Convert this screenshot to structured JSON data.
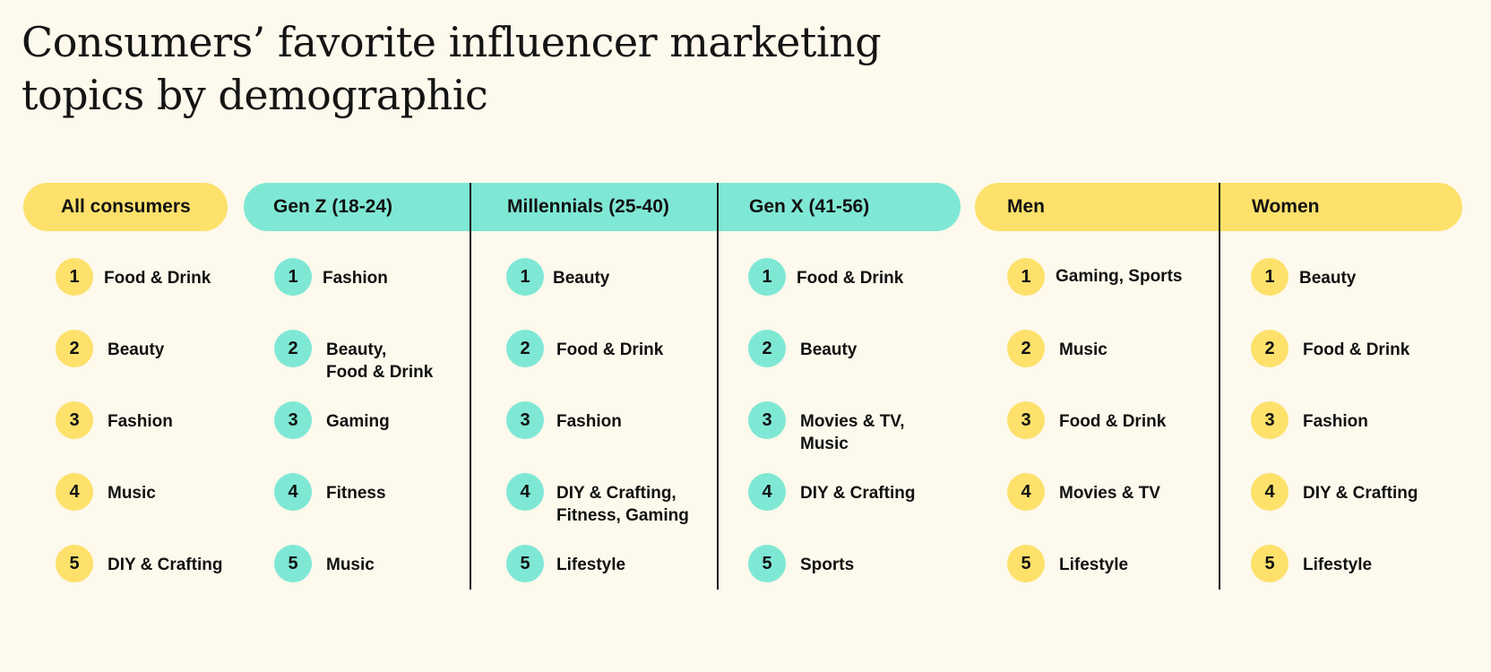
{
  "title_line1": "Consumers’ favorite influencer marketing",
  "title_line2": "topics by demographic",
  "colors": {
    "background": "#fdf9ec",
    "yellow": "#fde16b",
    "teal": "#7fe8d5",
    "text": "#111111"
  },
  "columns": [
    {
      "header": "All consumers",
      "color": "yellow",
      "items": [
        {
          "rank": "1",
          "topic": "Food & Drink"
        },
        {
          "rank": "2",
          "topic": "Beauty"
        },
        {
          "rank": "3",
          "topic": "Fashion"
        },
        {
          "rank": "4",
          "topic": "Music"
        },
        {
          "rank": "5",
          "topic": "DIY & Crafting"
        }
      ]
    },
    {
      "header": "Gen Z (18-24)",
      "color": "teal",
      "items": [
        {
          "rank": "1",
          "topic": "Fashion"
        },
        {
          "rank": "2",
          "topic": "Beauty,\nFood & Drink"
        },
        {
          "rank": "3",
          "topic": "Gaming"
        },
        {
          "rank": "4",
          "topic": "Fitness"
        },
        {
          "rank": "5",
          "topic": "Music"
        }
      ]
    },
    {
      "header": "Millennials (25-40)",
      "color": "teal",
      "items": [
        {
          "rank": "1",
          "topic": "Beauty"
        },
        {
          "rank": "2",
          "topic": "Food & Drink"
        },
        {
          "rank": "3",
          "topic": "Fashion"
        },
        {
          "rank": "4",
          "topic": "DIY & Crafting,\nFitness, Gaming"
        },
        {
          "rank": "5",
          "topic": "Lifestyle"
        }
      ]
    },
    {
      "header": "Gen X (41-56)",
      "color": "teal",
      "items": [
        {
          "rank": "1",
          "topic": "Food & Drink"
        },
        {
          "rank": "2",
          "topic": "Beauty"
        },
        {
          "rank": "3",
          "topic": "Movies & TV,\nMusic"
        },
        {
          "rank": "4",
          "topic": "DIY & Crafting"
        },
        {
          "rank": "5",
          "topic": "Sports"
        }
      ]
    },
    {
      "header": "Men",
      "color": "yellow",
      "items": [
        {
          "rank": "1",
          "topic": "Gaming, Sports"
        },
        {
          "rank": "2",
          "topic": "Music"
        },
        {
          "rank": "3",
          "topic": "Food & Drink"
        },
        {
          "rank": "4",
          "topic": "Movies & TV"
        },
        {
          "rank": "5",
          "topic": "Lifestyle"
        }
      ]
    },
    {
      "header": "Women",
      "color": "yellow",
      "items": [
        {
          "rank": "1",
          "topic": "Beauty"
        },
        {
          "rank": "2",
          "topic": "Food & Drink"
        },
        {
          "rank": "3",
          "topic": "Fashion"
        },
        {
          "rank": "4",
          "topic": "DIY & Crafting"
        },
        {
          "rank": "5",
          "topic": "Lifestyle"
        }
      ]
    }
  ]
}
